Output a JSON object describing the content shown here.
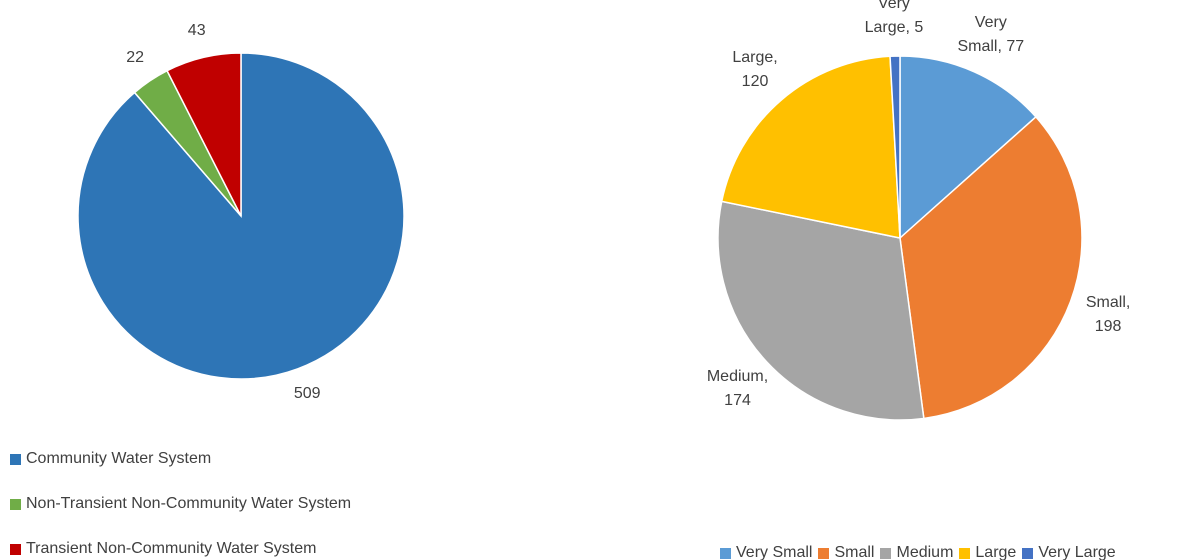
{
  "chart_data": [
    {
      "type": "pie",
      "categories": [
        "Community Water System",
        "Non-Transient Non-Community Water System",
        "Transient Non-Community Water System"
      ],
      "values": [
        509,
        22,
        43
      ],
      "colors": [
        "#2e75b6",
        "#70ad47",
        "#c00000"
      ]
    },
    {
      "type": "pie",
      "categories": [
        "Very Small",
        "Small",
        "Medium",
        "Large",
        "Very Large"
      ],
      "values": [
        77,
        198,
        174,
        120,
        5
      ],
      "value_labels": [
        "Very Small, 77",
        "Small, 198",
        "Medium, 174",
        "Large, 120",
        "Very Large, 5"
      ],
      "colors": [
        "#5b9bd5",
        "#ed7d31",
        "#a5a5a5",
        "#ffc000",
        "#4472c4"
      ]
    }
  ]
}
